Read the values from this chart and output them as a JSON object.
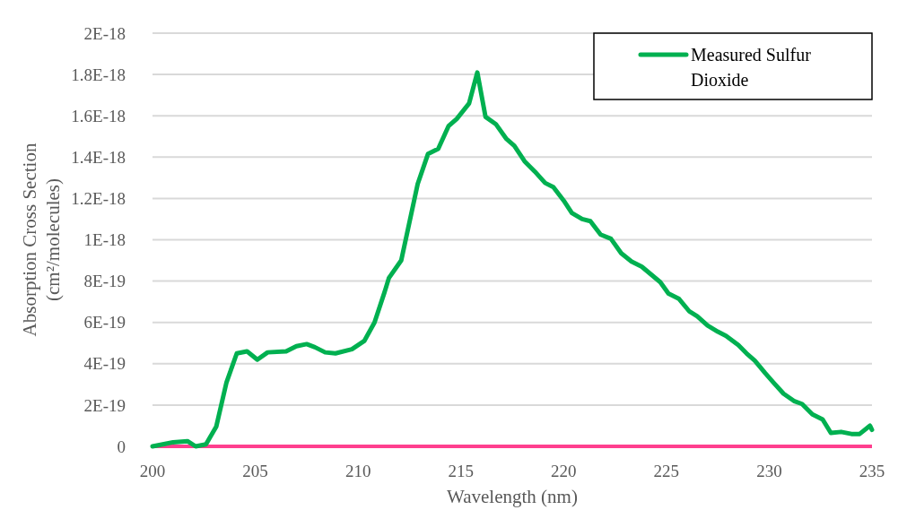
{
  "chart_data": {
    "type": "line",
    "xlabel": "Wavelength (nm)",
    "ylabel": "Absorption Cross Section (cm²/molecules)",
    "xlim": [
      200,
      235
    ],
    "xticks": [
      200,
      205,
      210,
      215,
      220,
      225,
      230,
      235
    ],
    "ylim": [
      0,
      2e-18
    ],
    "yticks": [
      0,
      {
        "value": 2e-19,
        "label": "2E-19"
      },
      {
        "value": 4e-19,
        "label": "4E-19"
      },
      {
        "value": 6e-19,
        "label": "6E-19"
      },
      {
        "value": 8e-19,
        "label": "8E-19"
      },
      {
        "value": 1e-18,
        "label": "1E-18"
      },
      {
        "value": 1.2e-18,
        "label": "1.2E-18"
      },
      {
        "value": 1.4e-18,
        "label": "1.4E-18"
      },
      {
        "value": 1.6e-18,
        "label": "1.6E-18"
      },
      {
        "value": 1.8e-18,
        "label": "1.8E-18"
      },
      {
        "value": 2e-18,
        "label": "2E-18"
      }
    ],
    "grid": "y",
    "legend": "top right",
    "line_style": "solid",
    "marker": "none",
    "series": [
      {
        "name": "Measured Sulfur Dioxide",
        "color": "#00b050",
        "x": [
          200.0,
          200.5,
          201.0,
          201.7,
          202.1,
          202.6,
          203.1,
          203.6,
          204.1,
          204.6,
          205.1,
          205.6,
          206.5,
          207.0,
          207.5,
          207.9,
          208.4,
          208.9,
          209.7,
          210.3,
          210.8,
          211.3,
          211.5,
          212.1,
          212.9,
          213.4,
          213.9,
          214.4,
          214.8,
          215.4,
          215.8,
          216.2,
          216.7,
          217.2,
          217.6,
          218.1,
          218.6,
          219.1,
          219.5,
          220.0,
          220.4,
          220.9,
          221.3,
          221.8,
          222.3,
          222.8,
          223.3,
          223.8,
          224.7,
          225.1,
          225.6,
          226.1,
          226.5,
          227.0,
          227.5,
          227.9,
          228.5,
          228.9,
          229.3,
          229.8,
          230.2,
          230.7,
          231.2,
          231.6,
          232.1,
          232.6,
          233.0,
          233.5,
          234.0,
          234.4,
          234.9,
          235.0
        ],
        "values": [
          0,
          1e-20,
          2e-20,
          2.5e-20,
          0,
          1e-20,
          9.5e-20,
          3.1e-19,
          4.5e-19,
          4.6e-19,
          4.2e-19,
          4.55e-19,
          4.6e-19,
          4.85e-19,
          4.95e-19,
          4.8e-19,
          4.55e-19,
          4.5e-19,
          4.7e-19,
          5.1e-19,
          6e-19,
          7.5e-19,
          8.15e-19,
          9e-19,
          1.27e-18,
          1.415e-18,
          1.44e-18,
          1.55e-18,
          1.585e-18,
          1.66e-18,
          1.81e-18,
          1.595e-18,
          1.56e-18,
          1.49e-18,
          1.455e-18,
          1.38e-18,
          1.33e-18,
          1.275e-18,
          1.255e-18,
          1.19e-18,
          1.13e-18,
          1.1e-18,
          1.09e-18,
          1.025e-18,
          1.005e-18,
          9.35e-19,
          8.95e-19,
          8.7e-19,
          7.95e-19,
          7.4e-19,
          7.15e-19,
          6.55e-19,
          6.3e-19,
          5.85e-19,
          5.55e-19,
          5.35e-19,
          4.9e-19,
          4.5e-19,
          4.15e-19,
          3.55e-19,
          3.1e-19,
          2.55e-19,
          2.2e-19,
          2.05e-19,
          1.55e-19,
          1.3e-19,
          6.5e-20,
          7e-20,
          6e-20,
          6e-20,
          1e-19,
          8e-20
        ]
      }
    ]
  }
}
